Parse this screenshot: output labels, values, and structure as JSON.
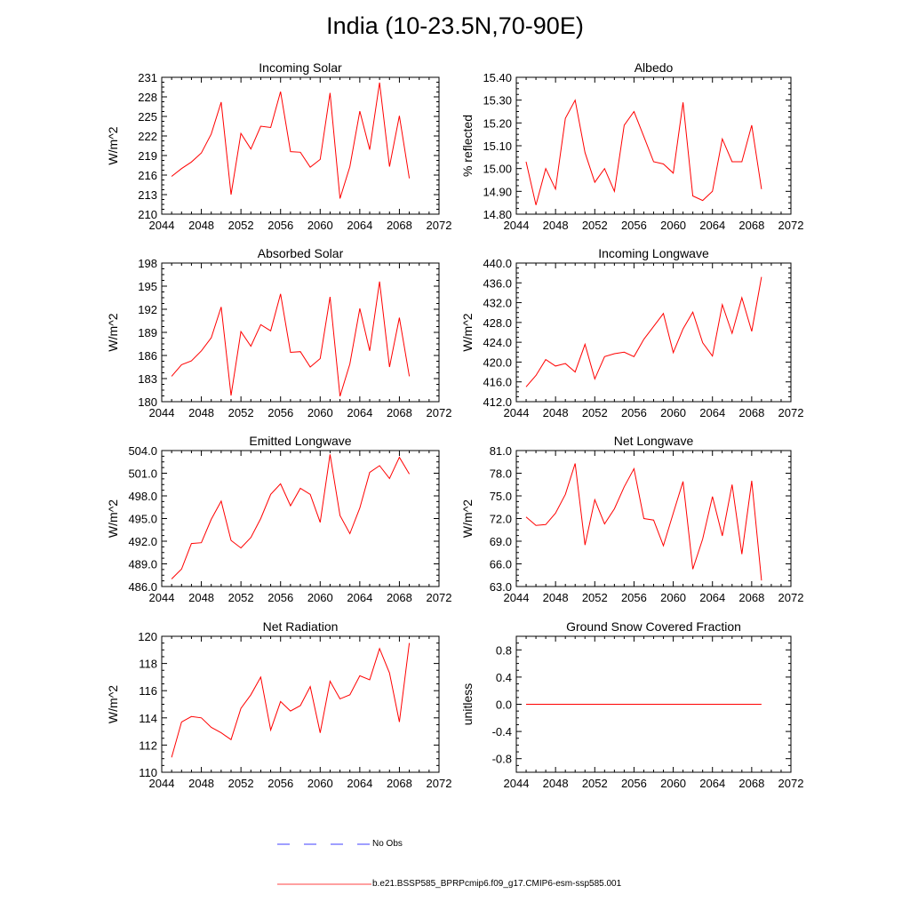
{
  "title": "India (10-23.5N,70-90E)",
  "legend": {
    "obs_label": "No Obs",
    "model_label": "b.e21.BSSP585_BPRPcmip6.f09_g17.CMIP6-esm-ssp585.001",
    "obs_color": "#0000ff",
    "model_color": "#ff0000"
  },
  "chart_data": [
    {
      "type": "line",
      "title": "Incoming Solar",
      "ylabel": "W/m^2",
      "xlim": [
        2044,
        2072
      ],
      "ylim": [
        210,
        231
      ],
      "xticks": [
        "2044",
        "2048",
        "2052",
        "2056",
        "2060",
        "2064",
        "2068",
        "2072"
      ],
      "yticks": [
        "210",
        "213",
        "216",
        "219",
        "222",
        "225",
        "228",
        "231"
      ],
      "x": [
        2045,
        2046,
        2047,
        2048,
        2049,
        2050,
        2051,
        2052,
        2053,
        2054,
        2055,
        2056,
        2057,
        2058,
        2059,
        2060,
        2061,
        2062,
        2063,
        2064,
        2065,
        2066,
        2067,
        2068,
        2069
      ],
      "series": [
        {
          "color": "#ff0000",
          "values": [
            215.8,
            217.0,
            218.0,
            219.4,
            222.3,
            227.2,
            213.0,
            222.4,
            220.0,
            223.5,
            223.3,
            228.8,
            219.6,
            219.5,
            217.2,
            218.4,
            228.6,
            212.4,
            217.3,
            225.8,
            219.9,
            230.2,
            217.3,
            225.1,
            215.5
          ]
        }
      ]
    },
    {
      "type": "line",
      "title": "Albedo",
      "ylabel": "% reflected",
      "xlim": [
        2044,
        2072
      ],
      "ylim": [
        14.8,
        15.4
      ],
      "xticks": [
        "2044",
        "2048",
        "2052",
        "2056",
        "2060",
        "2064",
        "2068",
        "2072"
      ],
      "yticks": [
        "14.80",
        "14.90",
        "15.00",
        "15.10",
        "15.20",
        "15.30",
        "15.40"
      ],
      "x": [
        2045,
        2046,
        2047,
        2048,
        2049,
        2050,
        2051,
        2052,
        2053,
        2054,
        2055,
        2056,
        2057,
        2058,
        2059,
        2060,
        2061,
        2062,
        2063,
        2064,
        2065,
        2066,
        2067,
        2068,
        2069
      ],
      "series": [
        {
          "color": "#ff0000",
          "values": [
            15.03,
            14.84,
            15.0,
            14.91,
            15.22,
            15.3,
            15.07,
            14.94,
            15.0,
            14.9,
            15.19,
            15.25,
            15.14,
            15.03,
            15.02,
            14.98,
            15.29,
            14.88,
            14.86,
            14.9,
            15.13,
            15.03,
            15.03,
            15.19,
            14.91
          ]
        }
      ]
    },
    {
      "type": "line",
      "title": "Absorbed Solar",
      "ylabel": "W/m^2",
      "xlim": [
        2044,
        2072
      ],
      "ylim": [
        180,
        198
      ],
      "xticks": [
        "2044",
        "2048",
        "2052",
        "2056",
        "2060",
        "2064",
        "2068",
        "2072"
      ],
      "yticks": [
        "180",
        "183",
        "186",
        "189",
        "192",
        "195",
        "198"
      ],
      "x": [
        2045,
        2046,
        2047,
        2048,
        2049,
        2050,
        2051,
        2052,
        2053,
        2054,
        2055,
        2056,
        2057,
        2058,
        2059,
        2060,
        2061,
        2062,
        2063,
        2064,
        2065,
        2066,
        2067,
        2068,
        2069
      ],
      "series": [
        {
          "color": "#ff0000",
          "values": [
            183.3,
            184.8,
            185.3,
            186.6,
            188.3,
            192.3,
            180.8,
            189.1,
            187.2,
            190.0,
            189.2,
            194.0,
            186.4,
            186.5,
            184.5,
            185.6,
            193.6,
            180.7,
            184.9,
            192.1,
            186.6,
            195.6,
            184.5,
            190.9,
            183.3
          ]
        }
      ]
    },
    {
      "type": "line",
      "title": "Incoming Longwave",
      "ylabel": "W/m^2",
      "xlim": [
        2044,
        2072
      ],
      "ylim": [
        412.0,
        440.0
      ],
      "xticks": [
        "2044",
        "2048",
        "2052",
        "2056",
        "2060",
        "2064",
        "2068",
        "2072"
      ],
      "yticks": [
        "412.0",
        "416.0",
        "420.0",
        "424.0",
        "428.0",
        "432.0",
        "436.0",
        "440.0"
      ],
      "x": [
        2045,
        2046,
        2047,
        2048,
        2049,
        2050,
        2051,
        2052,
        2053,
        2054,
        2055,
        2056,
        2057,
        2058,
        2059,
        2060,
        2061,
        2062,
        2063,
        2064,
        2065,
        2066,
        2067,
        2068,
        2069
      ],
      "series": [
        {
          "color": "#ff0000",
          "values": [
            415.0,
            417.3,
            420.5,
            419.2,
            419.7,
            418.0,
            423.6,
            416.6,
            421.1,
            421.7,
            422.0,
            421.1,
            424.6,
            427.2,
            429.8,
            421.9,
            426.7,
            430.1,
            423.9,
            421.2,
            431.6,
            425.8,
            433.0,
            426.2,
            437.2
          ]
        }
      ]
    },
    {
      "type": "line",
      "title": "Emitted Longwave",
      "ylabel": "W/m^2",
      "xlim": [
        2044,
        2072
      ],
      "ylim": [
        486.0,
        504.0
      ],
      "xticks": [
        "2044",
        "2048",
        "2052",
        "2056",
        "2060",
        "2064",
        "2068",
        "2072"
      ],
      "yticks": [
        "486.0",
        "489.0",
        "492.0",
        "495.0",
        "498.0",
        "501.0",
        "504.0"
      ],
      "x": [
        2045,
        2046,
        2047,
        2048,
        2049,
        2050,
        2051,
        2052,
        2053,
        2054,
        2055,
        2056,
        2057,
        2058,
        2059,
        2060,
        2061,
        2062,
        2063,
        2064,
        2065,
        2066,
        2067,
        2068,
        2069
      ],
      "series": [
        {
          "color": "#ff0000",
          "values": [
            487.0,
            488.3,
            491.7,
            491.8,
            494.9,
            497.3,
            492.1,
            491.1,
            492.5,
            495.0,
            498.2,
            499.6,
            496.7,
            499.0,
            498.2,
            494.5,
            503.5,
            495.4,
            493.0,
            496.4,
            501.1,
            502.0,
            500.3,
            503.1,
            500.9
          ]
        }
      ]
    },
    {
      "type": "line",
      "title": "Net Longwave",
      "ylabel": "W/m^2",
      "xlim": [
        2044,
        2072
      ],
      "ylim": [
        63.0,
        81.0
      ],
      "xticks": [
        "2044",
        "2048",
        "2052",
        "2056",
        "2060",
        "2064",
        "2068",
        "2072"
      ],
      "yticks": [
        "63.0",
        "66.0",
        "69.0",
        "72.0",
        "75.0",
        "78.0",
        "81.0"
      ],
      "x": [
        2045,
        2046,
        2047,
        2048,
        2049,
        2050,
        2051,
        2052,
        2053,
        2054,
        2055,
        2056,
        2057,
        2058,
        2059,
        2060,
        2061,
        2062,
        2063,
        2064,
        2065,
        2066,
        2067,
        2068,
        2069
      ],
      "series": [
        {
          "color": "#ff0000",
          "values": [
            72.2,
            71.1,
            71.2,
            72.7,
            75.2,
            79.3,
            68.5,
            74.5,
            71.3,
            73.3,
            76.2,
            78.6,
            72.0,
            71.8,
            68.4,
            72.7,
            76.9,
            65.3,
            69.3,
            74.9,
            69.7,
            76.5,
            67.3,
            77.0,
            63.8
          ]
        }
      ]
    },
    {
      "type": "line",
      "title": "Net Radiation",
      "ylabel": "W/m^2",
      "xlim": [
        2044,
        2072
      ],
      "ylim": [
        110,
        120
      ],
      "xticks": [
        "2044",
        "2048",
        "2052",
        "2056",
        "2060",
        "2064",
        "2068",
        "2072"
      ],
      "yticks": [
        "110",
        "112",
        "114",
        "116",
        "118",
        "120"
      ],
      "x": [
        2045,
        2046,
        2047,
        2048,
        2049,
        2050,
        2051,
        2052,
        2053,
        2054,
        2055,
        2056,
        2057,
        2058,
        2059,
        2060,
        2061,
        2062,
        2063,
        2064,
        2065,
        2066,
        2067,
        2068,
        2069
      ],
      "series": [
        {
          "color": "#ff0000",
          "values": [
            111.1,
            113.7,
            114.1,
            114.0,
            113.3,
            112.9,
            112.4,
            114.7,
            115.7,
            117.0,
            113.1,
            115.2,
            114.5,
            114.9,
            116.3,
            112.9,
            116.7,
            115.4,
            115.7,
            117.1,
            116.8,
            119.1,
            117.3,
            113.7,
            119.5
          ]
        }
      ]
    },
    {
      "type": "line",
      "title": "Ground Snow Covered Fraction",
      "ylabel": "unitless",
      "xlim": [
        2044,
        2072
      ],
      "ylim": [
        -1.0,
        1.0
      ],
      "xticks": [
        "2044",
        "2048",
        "2052",
        "2056",
        "2060",
        "2064",
        "2068",
        "2072"
      ],
      "yticks": [
        "-0.8",
        "-0.4",
        "0.0",
        "0.4",
        "0.8"
      ],
      "yticks_values": [
        -0.8,
        -0.4,
        0.0,
        0.4,
        0.8
      ],
      "x": [
        2045,
        2046,
        2047,
        2048,
        2049,
        2050,
        2051,
        2052,
        2053,
        2054,
        2055,
        2056,
        2057,
        2058,
        2059,
        2060,
        2061,
        2062,
        2063,
        2064,
        2065,
        2066,
        2067,
        2068,
        2069
      ],
      "series": [
        {
          "color": "#ff0000",
          "values": [
            0,
            0,
            0,
            0,
            0,
            0,
            0,
            0,
            0,
            0,
            0,
            0,
            0,
            0,
            0,
            0,
            0,
            0,
            0,
            0,
            0,
            0,
            0,
            0,
            0
          ]
        }
      ]
    }
  ]
}
